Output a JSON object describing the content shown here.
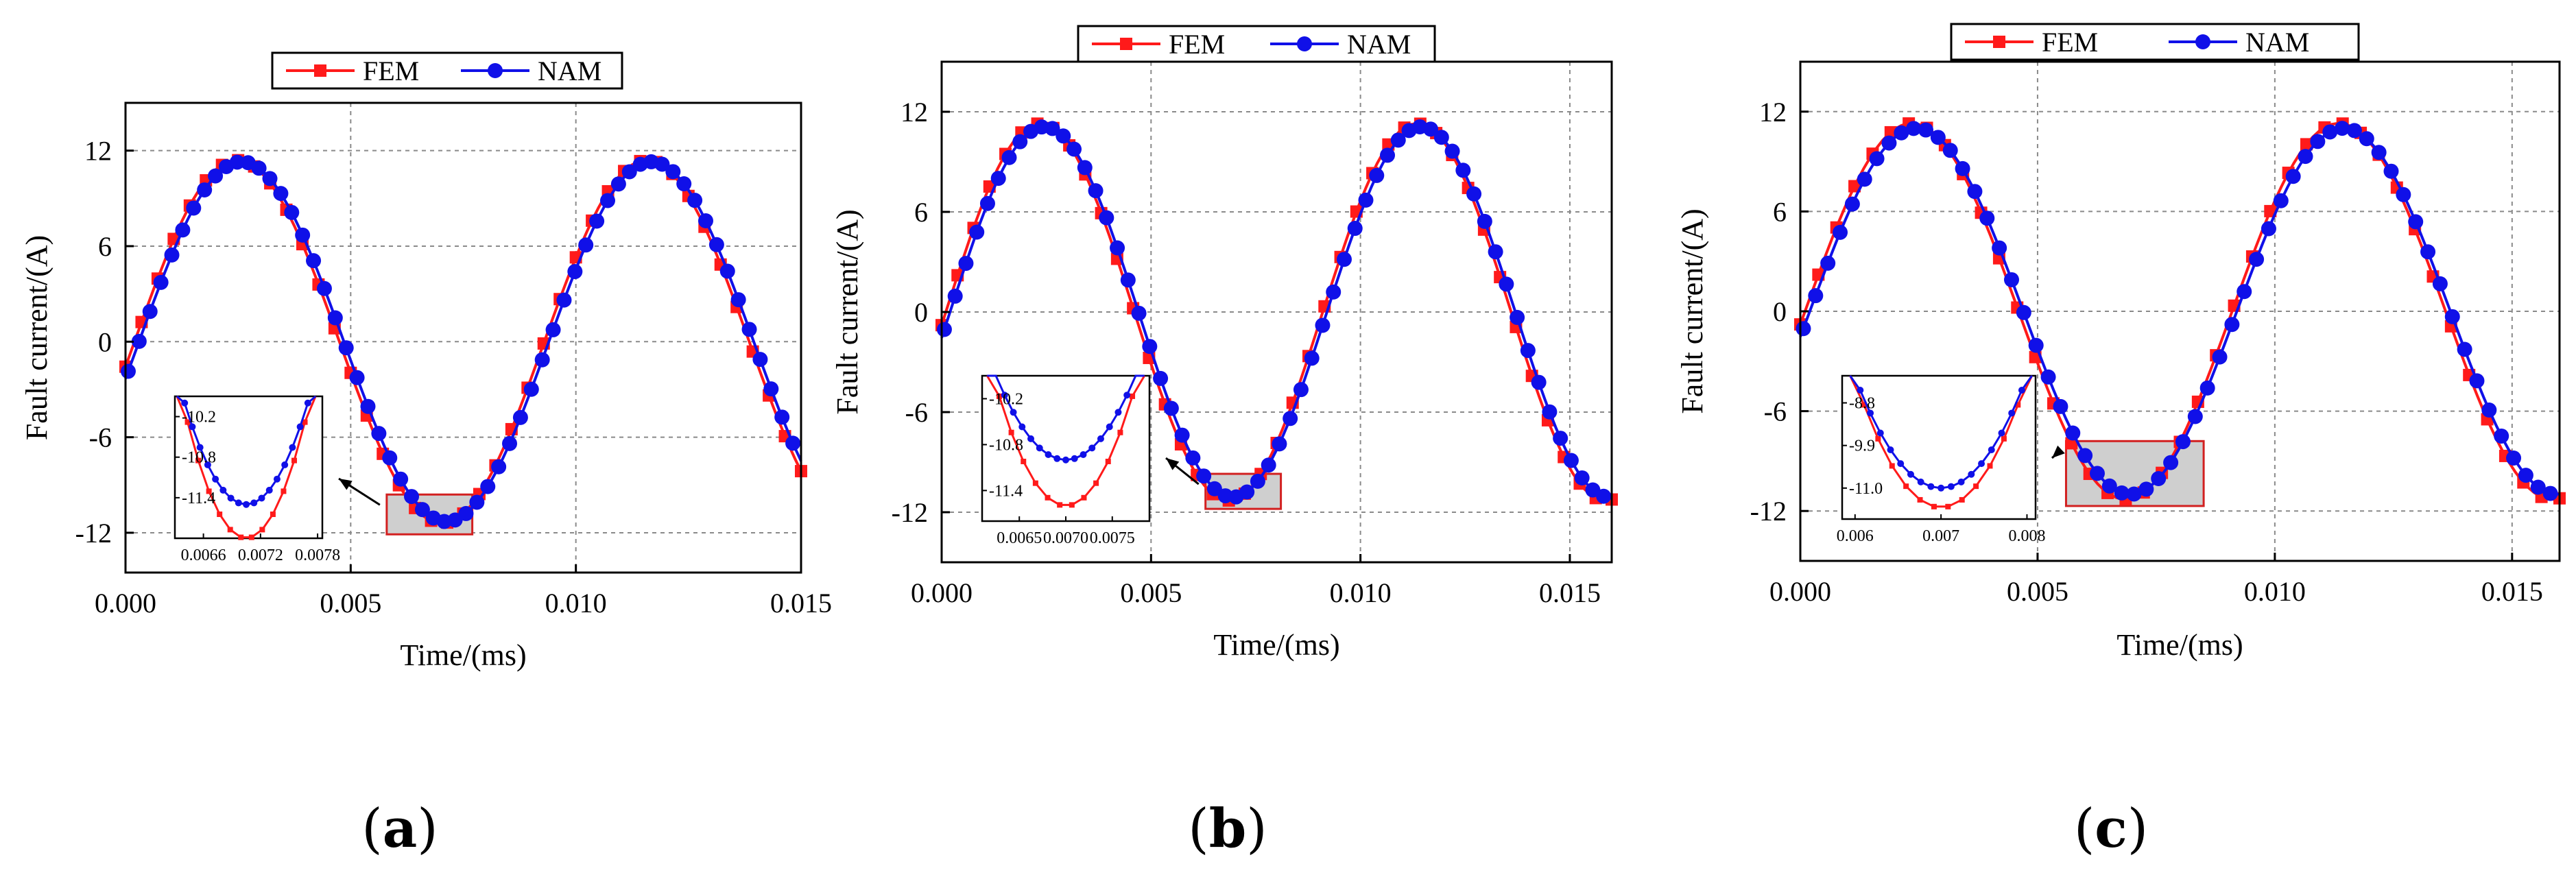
{
  "colors": {
    "fem": "#ff1a1a",
    "nam": "#1010e8",
    "grid": "#8a8a8a",
    "inset_box": "#cfcfcf",
    "inset_border": "#d22020"
  },
  "chart_data": [
    {
      "type": "line",
      "panel": "a",
      "label_open": "(",
      "label_letter": "a",
      "label_close": ")",
      "xlabel": "Time/(ms)",
      "ylabel": "Fault current/(A)",
      "xlim": [
        0,
        0.015
      ],
      "ylim": [
        -14.5,
        15
      ],
      "xticks": [
        0,
        0.005,
        0.01,
        0.015
      ],
      "xtick_labels": [
        "0.000",
        "0.005",
        "0.010",
        "0.015"
      ],
      "yticks": [
        -12,
        -6,
        0,
        6,
        12
      ],
      "ytick_labels": [
        "-12",
        "-6",
        "0",
        "6",
        "12"
      ],
      "legend": [
        "FEM",
        "NAM"
      ],
      "series": [
        {
          "name": "FEM",
          "amplitude": 11.4,
          "period": 0.0091,
          "phase": 0.0002
        },
        {
          "name": "NAM",
          "amplitude": 11.3,
          "period": 0.0091,
          "phase": 0.0003
        }
      ],
      "highlight": {
        "x": [
          0.0058,
          0.0077
        ],
        "y": [
          -12.1,
          -9.6
        ]
      },
      "inset": {
        "xlim": [
          0.0063,
          0.00785
        ],
        "ylim": [
          -12.0,
          -9.9
        ],
        "xticks": [
          0.0066,
          0.0072,
          0.0078
        ],
        "xtick_labels": [
          "0.0066",
          "0.0072",
          "0.0078"
        ],
        "yticks": [
          -10.2,
          -10.8,
          -11.4
        ],
        "ytick_labels": [
          "-10.2",
          "-10.8",
          "-11.4"
        ],
        "fem_min": -12.0,
        "nam_min": -11.5,
        "center": 0.00705
      }
    },
    {
      "type": "line",
      "panel": "b",
      "label_open": "(",
      "label_letter": "b",
      "label_close": ")",
      "xlabel": "Time/(ms)",
      "ylabel": "Fault current/(A)",
      "xlim": [
        0,
        0.016
      ],
      "ylim": [
        -15,
        15
      ],
      "xticks": [
        0,
        0.005,
        0.01,
        0.015
      ],
      "xtick_labels": [
        "0.000",
        "0.005",
        "0.010",
        "0.015"
      ],
      "yticks": [
        -12,
        -6,
        0,
        6,
        12
      ],
      "ytick_labels": [
        "-12",
        "-6",
        "0",
        "6",
        "12"
      ],
      "legend": [
        "FEM",
        "NAM"
      ],
      "series": [
        {
          "name": "FEM",
          "amplitude": 11.3,
          "period": 0.009,
          "phase": 0.0001
        },
        {
          "name": "NAM",
          "amplitude": 11.1,
          "period": 0.009,
          "phase": 0.0002
        }
      ],
      "highlight": {
        "x": [
          0.0063,
          0.0081
        ],
        "y": [
          -11.8,
          -9.7
        ]
      },
      "inset": {
        "xlim": [
          0.0061,
          0.0079
        ],
        "ylim": [
          -11.8,
          -9.9
        ],
        "xticks": [
          0.0065,
          0.007,
          0.0075
        ],
        "xtick_labels": [
          "0.0065",
          "0.0070",
          "0.0075"
        ],
        "yticks": [
          -10.2,
          -10.8,
          -11.4
        ],
        "ytick_labels": [
          "-10.2",
          "-10.8",
          "-11.4"
        ],
        "fem_min": -11.6,
        "nam_min": -11.0,
        "center": 0.007
      }
    },
    {
      "type": "line",
      "panel": "c",
      "label_open": "(",
      "label_letter": "c",
      "label_close": ")",
      "xlabel": "Time/(ms)",
      "ylabel": "Fault current/(A)",
      "xlim": [
        0,
        0.016
      ],
      "ylim": [
        -15,
        15
      ],
      "xticks": [
        0,
        0.005,
        0.01,
        0.015
      ],
      "xtick_labels": [
        "0.000",
        "0.005",
        "0.010",
        "0.015"
      ],
      "yticks": [
        -12,
        -6,
        0,
        6,
        12
      ],
      "ytick_labels": [
        "-12",
        "-6",
        "0",
        "6",
        "12"
      ],
      "legend": [
        "FEM",
        "NAM"
      ],
      "series": [
        {
          "name": "FEM",
          "amplitude": 11.3,
          "period": 0.009,
          "phase": 0.0001
        },
        {
          "name": "NAM",
          "amplitude": 11.0,
          "period": 0.009,
          "phase": 0.0002
        }
      ],
      "highlight": {
        "x": [
          0.0056,
          0.0085
        ],
        "y": [
          -11.7,
          -7.8
        ]
      },
      "inset": {
        "xlim": [
          0.00585,
          0.0081
        ],
        "ylim": [
          -11.8,
          -8.1
        ],
        "xticks": [
          0.006,
          0.007,
          0.008
        ],
        "xtick_labels": [
          "0.006",
          "0.007",
          "0.008"
        ],
        "yticks": [
          -8.8,
          -9.9,
          -11.0
        ],
        "ytick_labels": [
          "-8.8",
          "-9.9",
          "-11.0"
        ],
        "fem_min": -11.5,
        "nam_min": -11.0,
        "center": 0.007
      }
    }
  ]
}
